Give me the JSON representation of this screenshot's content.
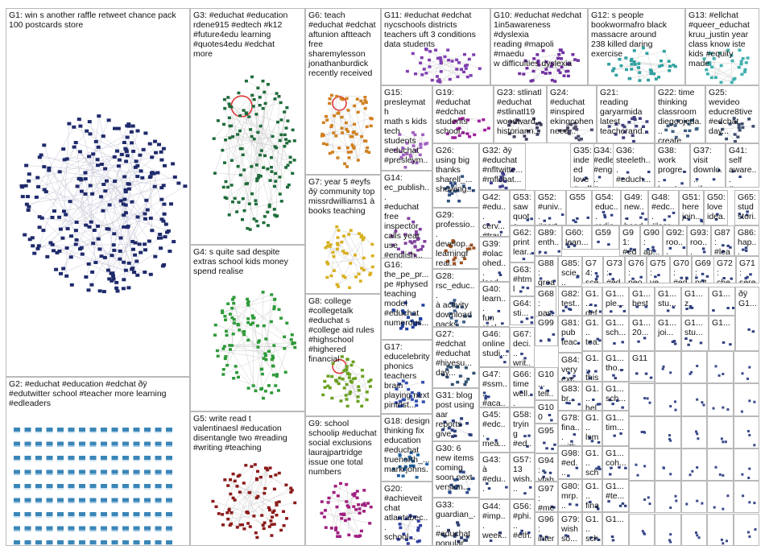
{
  "groups": [
    {
      "id": "G1",
      "label": "G1: win s another raffle retweet chance pack\n100 postcards store",
      "color": "#1f2a6b",
      "kind": "sphere"
    },
    {
      "id": "G2",
      "label": "G2: #educhat #education #edchat ðÿ\n#edutwitter school #teacher more learning\n#edleaders",
      "color": "#3a86b8",
      "kind": "grid"
    },
    {
      "id": "G3",
      "label": "G3: #educhat #education\nrdene915 #edtech #k12\n#future4edu learning\n#quotes4edu #edchat\nmore",
      "color": "#1e6b3a",
      "kind": "cluster",
      "hub": "#e03030"
    },
    {
      "id": "G4",
      "label": "G4: s quite sad despite\nextras school kids money\nspend realise",
      "color": "#2e9a3a",
      "kind": "cluster"
    },
    {
      "id": "G5",
      "label": "G5: write read t\nvalentinaesl #education\ndisentangle two #reading\n#writing #teaching",
      "color": "#8b1a1a",
      "kind": "cluster"
    },
    {
      "id": "G6",
      "label": "G6: teach\n#educhat #edchat\naftunion aftteach\nfree\nsharemylesson\njonathanburdick\nrecently received",
      "color": "#d08020",
      "kind": "cluster",
      "hub": "#e03030"
    },
    {
      "id": "G7",
      "label": "G7: year 5 #eyfs\nðÿ community top\nmissrdwilliams1 à\nbooks teaching",
      "color": "#d8b020",
      "kind": "cluster"
    },
    {
      "id": "G8",
      "label": "G8: college\n#collegetalk\n#educhat s\n#college aid rules\n#highschool\n#highered\nfinancial",
      "color": "#6aa020",
      "kind": "cluster",
      "hub": "#e03030"
    },
    {
      "id": "G9",
      "label": "G9: school\nschoolip #educhat\nsocial exclusions\nlaurajpartridge\nissue one total\nnumbers",
      "color": "#a02080",
      "kind": "cluster"
    },
    {
      "id": "G10",
      "label": "G10: #educhat #edchat\n1in5awareness #dyslexia\nreading #mapoli #maedu\nw difficulties dyslexia",
      "color": "#7030a0",
      "kind": "cluster"
    },
    {
      "id": "G11",
      "label": "G11: #educhat #edchat\nnycschools districts\nteachers uft 3 conditions\ndata students",
      "color": "#8040b0",
      "kind": "cluster"
    },
    {
      "id": "G12",
      "label": "G12: s people\nbookwormafro black\nmassacre around\n238 killed daring\nexercise",
      "color": "#30a0a0",
      "kind": "cluster"
    },
    {
      "id": "G13",
      "label": "G13: #ellchat\n#queer_educhat\nkruu_justin year\nclass know iste\nkids #equity\nmade",
      "color": "#40b0b0",
      "kind": "cluster"
    },
    {
      "id": "G14",
      "label": "G14:\nec_publish...\n#educhat\nfree\ninspector\ncalls year\nuse\n#english...",
      "color": "#8040a0",
      "kind": "cluster"
    },
    {
      "id": "G15",
      "label": "G15:\npresleymath\nmath s kids\ntech\nstudents\n#educhat\n#presleym...",
      "color": "#a060c0",
      "kind": "cluster"
    },
    {
      "id": "G16",
      "label": "G16:\nthe_pe_pr...\npe #physed\nteaching\nmodel\n#educhat\nnumerous...",
      "color": "#2040a0",
      "kind": "cluster"
    },
    {
      "id": "G17",
      "label": "G17:\neducelebrity\nphonics\nteachers\nbrain\nplaying next\npintrist...",
      "color": "#3050b0",
      "kind": "cluster"
    },
    {
      "id": "G18",
      "label": "G18: design\nthinking fix\neducation\n#educhat\ntruenorth_...\nmarkrjohns...",
      "color": "#2060a0",
      "kind": "cluster"
    },
    {
      "id": "G19",
      "label": "G19:\n#educhat\n#edchat\nstudents\nschool...",
      "color": "#a020a0",
      "kind": "cluster"
    },
    {
      "id": "G20",
      "label": "G20:\n#achieveit\nchat\natlantabec...\nschool...",
      "color": "#3040a0",
      "kind": "cluster"
    },
    {
      "id": "G21",
      "label": "G21:\nreading\ngaryarmida\nlatest\nteacherand...",
      "color": "#404080",
      "kind": "cluster"
    },
    {
      "id": "G22",
      "label": "G22: time\nthinking\nclassroom\ndiegoojeda...\ncreate...",
      "color": "#406080",
      "kind": "cluster"
    },
    {
      "id": "G23",
      "label": "G23: stlinatl\n#educhat\n#stlinatl19\nwoodward...\nhistoriann...",
      "color": "#404060",
      "kind": "cluster"
    },
    {
      "id": "G24",
      "label": "G24:\n#educhat\n#inspired\nekingcohen\nneed...",
      "color": "#505070",
      "kind": "cluster"
    },
    {
      "id": "G25",
      "label": "G25:\nwevideo\neducre8tive\n#edchat\nday...",
      "color": "#405070",
      "kind": "cluster"
    },
    {
      "id": "G26",
      "label": "G26:\nusing big\nthanks\nsharell_...\nshowing...",
      "color": "#305080",
      "kind": "cluster"
    },
    {
      "id": "G27",
      "label": "G27:\n#edchat\n#educhat\n#hivesu...\nday...",
      "color": "#305070",
      "kind": "cluster"
    },
    {
      "id": "G28",
      "label": "G28:\nrsc_educ...\nà activity\ndownload\npacks...",
      "color": "#406090",
      "kind": "cluster"
    },
    {
      "id": "G29",
      "label": "G29:\nprofessio...\ndevelop...\nlearningf\nreal...",
      "color": "#a05020",
      "kind": "cluster"
    },
    {
      "id": "G30",
      "label": "G30: 6\nnew items\ncoming\nsoon next\nversion...",
      "color": "#305090",
      "kind": "cluster"
    },
    {
      "id": "G31",
      "label": "G31: blog\npost using\naar\nreports\ngive...",
      "color": "#304080",
      "kind": "cluster"
    },
    {
      "id": "G32",
      "label": "G32: ðÿ\n#educhat\n#nfltwitte...\n#mflchat...",
      "color": "#404090",
      "kind": "cluster"
    },
    {
      "id": "G33",
      "label": "G33:\nguardian_...\n#educhat\npopular...",
      "color": "#304070",
      "kind": "cluster"
    },
    {
      "id": "G34",
      "label": "G34:\n#edleade...\n#engage_...\n#engage_l...",
      "color": "#304080",
      "kind": "mini"
    },
    {
      "id": "G35",
      "label": "G35:\nindeed\nlove\n#coffeee...",
      "color": "#304080",
      "kind": "mini"
    },
    {
      "id": "G36",
      "label": "G36:\nsteeleth...\n#educh...\nopen...",
      "color": "#304080",
      "kind": "mini"
    },
    {
      "id": "G37",
      "label": "G37:\nvisit\ndownlo...\ngifs...",
      "color": "#304080",
      "kind": "mini"
    },
    {
      "id": "G38",
      "label": "G38:\nwork\nprogre...\nhere's...",
      "color": "#304080",
      "kind": "mini"
    },
    {
      "id": "G39",
      "label": "G39:\n#olac\nohed...\nlead...",
      "color": "#304080",
      "kind": "mini"
    },
    {
      "id": "G40",
      "label": "G40:\nlearn...\nfun\nreal...",
      "color": "#304080",
      "kind": "mini"
    },
    {
      "id": "G41",
      "label": "G41:\nself\naware...\n#ssm...",
      "color": "#304080",
      "kind": "mini"
    },
    {
      "id": "G42",
      "label": "G42:\n#edu...\ncerv...\n#trau...",
      "color": "#304080",
      "kind": "mini"
    },
    {
      "id": "G43",
      "label": "G43:\nà\n#edu...",
      "color": "#304080",
      "kind": "mini"
    },
    {
      "id": "G44",
      "label": "G44:\n#imp...\nweek...",
      "color": "#304080",
      "kind": "mini"
    },
    {
      "id": "G45",
      "label": "G45:\n#edc...\nmea...",
      "color": "#304080",
      "kind": "mini"
    },
    {
      "id": "G46",
      "label": "G46:\nonline\nstudi...",
      "color": "#304080",
      "kind": "mini"
    },
    {
      "id": "G47",
      "label": "G47:\n#ssm...\n#aca...",
      "color": "#304080",
      "kind": "mini"
    },
    {
      "id": "G48",
      "label": "G48:\n#edc...\n#lear...",
      "color": "#304080",
      "kind": "mini"
    },
    {
      "id": "G49",
      "label": "G49:\nnew...\nhead...",
      "color": "#304080",
      "kind": "mini"
    },
    {
      "id": "G50",
      "label": "G50:\nlove\nidea...",
      "color": "#304080",
      "kind": "mini"
    },
    {
      "id": "G51",
      "label": "G51:\nhere\njoin...",
      "color": "#304080",
      "kind": "mini"
    },
    {
      "id": "G52",
      "label": "G52:\n#univ...\n#part...",
      "color": "#304080",
      "kind": "mini"
    },
    {
      "id": "G53",
      "label": "G53:\nsaw\nquote...",
      "color": "#304080",
      "kind": "mini"
    },
    {
      "id": "G54",
      "label": "G54:\neduc...\nradio...",
      "color": "#304080",
      "kind": "mini"
    },
    {
      "id": "G55",
      "label": "G55",
      "color": "#304080",
      "kind": "mini"
    },
    {
      "id": "G56",
      "label": "G56:\n#phi...\n#eth...",
      "color": "#304080",
      "kind": "mini"
    },
    {
      "id": "G57",
      "label": "G57:\n13\nwish...",
      "color": "#304080",
      "kind": "mini"
    },
    {
      "id": "G58",
      "label": "G58:\ntrying\n#ed...",
      "color": "#304080",
      "kind": "mini"
    },
    {
      "id": "G59",
      "label": "G59",
      "color": "#304080",
      "kind": "mini"
    },
    {
      "id": "G60",
      "label": "G60:\nlean...",
      "color": "#304080",
      "kind": "mini"
    },
    {
      "id": "G61",
      "label": "G61:\npowe...",
      "color": "#304080",
      "kind": "mini"
    },
    {
      "id": "G62",
      "label": "G62:\nprint\nlear...",
      "color": "#304080",
      "kind": "mini"
    },
    {
      "id": "G63",
      "label": "G63:\n#html\n#ed...",
      "color": "#304080",
      "kind": "mini"
    },
    {
      "id": "G64",
      "label": "G64:\nsti...",
      "color": "#304080",
      "kind": "mini"
    },
    {
      "id": "G65",
      "label": "G65:\nstud\nstori...",
      "color": "#304080",
      "kind": "mini"
    },
    {
      "id": "G66",
      "label": "G66:\ntime\nwell...",
      "color": "#304080",
      "kind": "mini"
    },
    {
      "id": "G67",
      "label": "G67:\ndeci...\nwrit...",
      "color": "#304080",
      "kind": "mini"
    },
    {
      "id": "G68",
      "label": "G68:\npas...\ninclu...",
      "color": "#304080",
      "kind": "mini"
    },
    {
      "id": "G69",
      "label": "G69:\nput...",
      "color": "#304080",
      "kind": "mini"
    },
    {
      "id": "G70",
      "label": "G70:\n#ed...",
      "color": "#304080",
      "kind": "mini"
    },
    {
      "id": "G71",
      "label": "G71:\nsere...",
      "color": "#304080",
      "kind": "mini"
    },
    {
      "id": "G72",
      "label": "G72:\nche...",
      "color": "#304080",
      "kind": "mini"
    },
    {
      "id": "G73",
      "label": "G73:\n#ed...",
      "color": "#304080",
      "kind": "mini"
    },
    {
      "id": "G74",
      "label": "G74:\nsce...",
      "color": "#304080",
      "kind": "mini"
    },
    {
      "id": "G75",
      "label": "G75:\nve...",
      "color": "#304080",
      "kind": "mini"
    },
    {
      "id": "G76",
      "label": "G76:\npeo...",
      "color": "#304080",
      "kind": "mini"
    },
    {
      "id": "G77",
      "label": "G77:\n#edu...",
      "color": "#304080",
      "kind": "mini"
    },
    {
      "id": "G78",
      "label": "G78:\nfina...\nwith...",
      "color": "#304080",
      "kind": "mini"
    },
    {
      "id": "G79",
      "label": "G79:\nwish\nso...",
      "color": "#304080",
      "kind": "mini"
    },
    {
      "id": "G80",
      "label": "G80:\nmrp...",
      "color": "#304080",
      "kind": "mini"
    },
    {
      "id": "G81",
      "label": "G81:\npub\nteac...",
      "color": "#304080",
      "kind": "mini"
    },
    {
      "id": "G82",
      "label": "G82:\ntest...",
      "color": "#304080",
      "kind": "mini"
    },
    {
      "id": "G83",
      "label": "G83:\nbr...",
      "color": "#304080",
      "kind": "mini"
    },
    {
      "id": "G84",
      "label": "G84:\nvery\nexc...",
      "color": "#304080",
      "kind": "mini"
    },
    {
      "id": "G85",
      "label": "G85:\nscie...",
      "color": "#304080",
      "kind": "mini"
    },
    {
      "id": "G86",
      "label": "G86:\nhap...",
      "color": "#304080",
      "kind": "mini"
    },
    {
      "id": "G87",
      "label": "G87:\n#lea...",
      "color": "#304080",
      "kind": "mini"
    },
    {
      "id": "G88",
      "label": "G88:\ngrea...",
      "color": "#304080",
      "kind": "mini"
    },
    {
      "id": "G89",
      "label": "G89:\nenth...",
      "color": "#304080",
      "kind": "mini"
    },
    {
      "id": "G90",
      "label": "G90:\nap...",
      "color": "#304080",
      "kind": "mini"
    },
    {
      "id": "G91",
      "label": "G91:\n#ed...",
      "color": "#304080",
      "kind": "mini"
    },
    {
      "id": "G92",
      "label": "G92:\nroo...",
      "color": "#304080",
      "kind": "mini"
    },
    {
      "id": "G93",
      "label": "G93:\nroo...",
      "color": "#304080",
      "kind": "mini"
    },
    {
      "id": "G94",
      "label": "G94:\nvtab...",
      "color": "#304080",
      "kind": "mini"
    },
    {
      "id": "G95",
      "label": "G95",
      "color": "#304080",
      "kind": "mini"
    },
    {
      "id": "G96",
      "label": "G96:\ninter...",
      "color": "#304080",
      "kind": "mini"
    },
    {
      "id": "G97",
      "label": "G97:\n#me...",
      "color": "#304080",
      "kind": "mini"
    },
    {
      "id": "G98",
      "label": "G98:\n#ed...",
      "color": "#304080",
      "kind": "mini"
    },
    {
      "id": "G99",
      "label": "G99",
      "color": "#304080",
      "kind": "mini"
    },
    {
      "id": "G100",
      "label": "G100",
      "color": "#304080",
      "kind": "mini"
    },
    {
      "id": "G101",
      "label": "G10...\ntell...",
      "color": "#304080",
      "kind": "mini"
    },
    {
      "id": "G102",
      "label": "G1...\ndef...",
      "color": "#304080",
      "kind": "mini"
    },
    {
      "id": "G103",
      "label": "G1...\nthis...",
      "color": "#304080",
      "kind": "mini"
    },
    {
      "id": "G104",
      "label": "G1...\nple...",
      "color": "#304080",
      "kind": "mini"
    },
    {
      "id": "G105",
      "label": "G1...\nbest",
      "color": "#304080",
      "kind": "mini"
    },
    {
      "id": "G106",
      "label": "G1...\nstu...",
      "color": "#304080",
      "kind": "mini"
    },
    {
      "id": "G107",
      "label": "G1...\nz",
      "color": "#304080",
      "kind": "mini"
    },
    {
      "id": "G108",
      "label": "G1...",
      "color": "#304080",
      "kind": "mini"
    },
    {
      "id": "G109",
      "label": "G1...\ntea...",
      "color": "#304080",
      "kind": "mini"
    },
    {
      "id": "G110",
      "label": "G1...\nsch...",
      "color": "#304080",
      "kind": "mini"
    },
    {
      "id": "G111",
      "label": "G1...\n20...",
      "color": "#304080",
      "kind": "mini"
    },
    {
      "id": "G112",
      "label": "G1...\njoi...",
      "color": "#304080",
      "kind": "mini"
    },
    {
      "id": "G113",
      "label": "G1...\nstu...",
      "color": "#304080",
      "kind": "mini"
    },
    {
      "id": "G114",
      "label": "G1...",
      "color": "#304080",
      "kind": "mini"
    },
    {
      "id": "G115",
      "label": "G1...\ntho...",
      "color": "#304080",
      "kind": "mini"
    },
    {
      "id": "G116",
      "label": "G1...\nhel...",
      "color": "#304080",
      "kind": "mini"
    },
    {
      "id": "G117",
      "label": "G1...\nsch...",
      "color": "#304080",
      "kind": "mini"
    },
    {
      "id": "G118",
      "label": "G11",
      "color": "#304080",
      "kind": "mini"
    },
    {
      "id": "G119",
      "label": "G1...\nlsm...",
      "color": "#304080",
      "kind": "mini"
    },
    {
      "id": "G120",
      "label": "G1...\nsch...",
      "color": "#304080",
      "kind": "mini"
    },
    {
      "id": "G121",
      "label": "G1...\nfina...",
      "color": "#304080",
      "kind": "mini"
    },
    {
      "id": "G122",
      "label": "G1...\ntim...",
      "color": "#304080",
      "kind": "mini"
    },
    {
      "id": "G123",
      "label": "G1...\ncoh...",
      "color": "#304080",
      "kind": "mini"
    },
    {
      "id": "G124",
      "label": "G1...\n#te...",
      "color": "#304080",
      "kind": "mini"
    },
    {
      "id": "G125",
      "label": "G1...\nsch...",
      "color": "#304080",
      "kind": "mini"
    },
    {
      "id": "G126",
      "label": "ðÿ\nG1...",
      "color": "#304080",
      "kind": "mini"
    },
    {
      "id": "G127",
      "label": "G1...",
      "color": "#304080",
      "kind": "mini"
    }
  ]
}
